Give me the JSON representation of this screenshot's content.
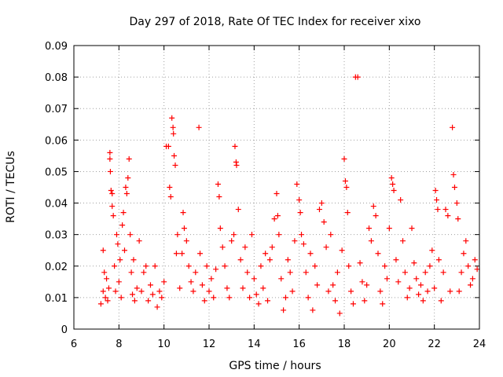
{
  "chart_data": {
    "type": "scatter",
    "title": "Day 297 of 2018, Rate Of TEC Index for receiver xixo",
    "xlabel": "GPS time / hours",
    "ylabel": "ROTI / TECUs",
    "xlim": [
      6,
      24
    ],
    "ylim": [
      0,
      0.09
    ],
    "xticks": [
      6,
      8,
      10,
      12,
      14,
      16,
      18,
      20,
      22,
      24
    ],
    "yticks": [
      0,
      0.01,
      0.02,
      0.03,
      0.04,
      0.05,
      0.06,
      0.07,
      0.08,
      0.09
    ],
    "xtick_labels": [
      "6",
      "8",
      "10",
      "12",
      "14",
      "16",
      "18",
      "20",
      "22",
      "24"
    ],
    "ytick_labels": [
      "0",
      "0.01",
      "0.02",
      "0.03",
      "0.04",
      "0.05",
      "0.06",
      "0.07",
      "0.08",
      "0.09"
    ],
    "grid": true,
    "marker": "+",
    "marker_color": "#ff0000",
    "series": [
      {
        "name": "ROTI",
        "points": [
          [
            7.2,
            0.008
          ],
          [
            7.3,
            0.012
          ],
          [
            7.3,
            0.025
          ],
          [
            7.35,
            0.018
          ],
          [
            7.4,
            0.01
          ],
          [
            7.45,
            0.016
          ],
          [
            7.5,
            0.009
          ],
          [
            7.55,
            0.013
          ],
          [
            7.6,
            0.056
          ],
          [
            7.6,
            0.054
          ],
          [
            7.62,
            0.05
          ],
          [
            7.65,
            0.044
          ],
          [
            7.7,
            0.043
          ],
          [
            7.7,
            0.039
          ],
          [
            7.75,
            0.036
          ],
          [
            7.8,
            0.02
          ],
          [
            7.85,
            0.012
          ],
          [
            7.9,
            0.03
          ],
          [
            7.95,
            0.027
          ],
          [
            8.0,
            0.015
          ],
          [
            8.05,
            0.022
          ],
          [
            8.1,
            0.01
          ],
          [
            8.15,
            0.033
          ],
          [
            8.2,
            0.037
          ],
          [
            8.25,
            0.025
          ],
          [
            8.3,
            0.045
          ],
          [
            8.35,
            0.043
          ],
          [
            8.4,
            0.048
          ],
          [
            8.45,
            0.054
          ],
          [
            8.5,
            0.03
          ],
          [
            8.55,
            0.018
          ],
          [
            8.6,
            0.011
          ],
          [
            8.65,
            0.022
          ],
          [
            8.7,
            0.009
          ],
          [
            8.8,
            0.013
          ],
          [
            8.9,
            0.028
          ],
          [
            9.0,
            0.012
          ],
          [
            9.1,
            0.018
          ],
          [
            9.2,
            0.02
          ],
          [
            9.3,
            0.009
          ],
          [
            9.4,
            0.014
          ],
          [
            9.5,
            0.011
          ],
          [
            9.6,
            0.02
          ],
          [
            9.7,
            0.007
          ],
          [
            9.8,
            0.012
          ],
          [
            9.9,
            0.01
          ],
          [
            10.0,
            0.015
          ],
          [
            10.1,
            0.058
          ],
          [
            10.2,
            0.058
          ],
          [
            10.25,
            0.045
          ],
          [
            10.3,
            0.042
          ],
          [
            10.35,
            0.067
          ],
          [
            10.4,
            0.064
          ],
          [
            10.42,
            0.062
          ],
          [
            10.45,
            0.055
          ],
          [
            10.5,
            0.052
          ],
          [
            10.55,
            0.024
          ],
          [
            10.6,
            0.03
          ],
          [
            10.7,
            0.013
          ],
          [
            10.8,
            0.024
          ],
          [
            10.85,
            0.037
          ],
          [
            10.9,
            0.032
          ],
          [
            11.0,
            0.028
          ],
          [
            11.1,
            0.02
          ],
          [
            11.2,
            0.015
          ],
          [
            11.3,
            0.012
          ],
          [
            11.4,
            0.018
          ],
          [
            11.55,
            0.064
          ],
          [
            11.6,
            0.024
          ],
          [
            11.7,
            0.014
          ],
          [
            11.8,
            0.009
          ],
          [
            11.9,
            0.02
          ],
          [
            12.0,
            0.012
          ],
          [
            12.1,
            0.016
          ],
          [
            12.2,
            0.01
          ],
          [
            12.3,
            0.019
          ],
          [
            12.4,
            0.046
          ],
          [
            12.45,
            0.042
          ],
          [
            12.5,
            0.032
          ],
          [
            12.6,
            0.026
          ],
          [
            12.7,
            0.02
          ],
          [
            12.8,
            0.013
          ],
          [
            12.9,
            0.01
          ],
          [
            13.0,
            0.028
          ],
          [
            13.1,
            0.03
          ],
          [
            13.15,
            0.058
          ],
          [
            13.2,
            0.053
          ],
          [
            13.22,
            0.052
          ],
          [
            13.3,
            0.038
          ],
          [
            13.4,
            0.022
          ],
          [
            13.5,
            0.013
          ],
          [
            13.6,
            0.026
          ],
          [
            13.7,
            0.018
          ],
          [
            13.8,
            0.01
          ],
          [
            13.9,
            0.03
          ],
          [
            14.0,
            0.016
          ],
          [
            14.1,
            0.011
          ],
          [
            14.2,
            0.008
          ],
          [
            14.3,
            0.02
          ],
          [
            14.4,
            0.013
          ],
          [
            14.5,
            0.024
          ],
          [
            14.6,
            0.009
          ],
          [
            14.7,
            0.022
          ],
          [
            14.8,
            0.026
          ],
          [
            14.9,
            0.035
          ],
          [
            15.0,
            0.043
          ],
          [
            15.05,
            0.036
          ],
          [
            15.1,
            0.03
          ],
          [
            15.2,
            0.016
          ],
          [
            15.3,
            0.006
          ],
          [
            15.4,
            0.01
          ],
          [
            15.5,
            0.022
          ],
          [
            15.6,
            0.018
          ],
          [
            15.7,
            0.012
          ],
          [
            15.8,
            0.028
          ],
          [
            15.9,
            0.046
          ],
          [
            16.0,
            0.041
          ],
          [
            16.05,
            0.037
          ],
          [
            16.1,
            0.03
          ],
          [
            16.2,
            0.027
          ],
          [
            16.3,
            0.018
          ],
          [
            16.4,
            0.01
          ],
          [
            16.5,
            0.024
          ],
          [
            16.6,
            0.006
          ],
          [
            16.7,
            0.02
          ],
          [
            16.8,
            0.014
          ],
          [
            16.9,
            0.038
          ],
          [
            17.0,
            0.04
          ],
          [
            17.1,
            0.034
          ],
          [
            17.2,
            0.026
          ],
          [
            17.3,
            0.012
          ],
          [
            17.4,
            0.03
          ],
          [
            17.5,
            0.014
          ],
          [
            17.6,
            0.009
          ],
          [
            17.7,
            0.018
          ],
          [
            17.8,
            0.005
          ],
          [
            17.9,
            0.025
          ],
          [
            18.0,
            0.054
          ],
          [
            18.05,
            0.047
          ],
          [
            18.1,
            0.045
          ],
          [
            18.15,
            0.037
          ],
          [
            18.2,
            0.02
          ],
          [
            18.3,
            0.012
          ],
          [
            18.4,
            0.008
          ],
          [
            18.5,
            0.08
          ],
          [
            18.6,
            0.08
          ],
          [
            18.7,
            0.021
          ],
          [
            18.8,
            0.015
          ],
          [
            18.9,
            0.009
          ],
          [
            19.0,
            0.014
          ],
          [
            19.1,
            0.032
          ],
          [
            19.2,
            0.028
          ],
          [
            19.3,
            0.039
          ],
          [
            19.4,
            0.036
          ],
          [
            19.5,
            0.024
          ],
          [
            19.6,
            0.012
          ],
          [
            19.7,
            0.008
          ],
          [
            19.8,
            0.02
          ],
          [
            19.9,
            0.016
          ],
          [
            20.0,
            0.032
          ],
          [
            20.1,
            0.048
          ],
          [
            20.15,
            0.046
          ],
          [
            20.2,
            0.044
          ],
          [
            20.3,
            0.022
          ],
          [
            20.4,
            0.015
          ],
          [
            20.5,
            0.041
          ],
          [
            20.6,
            0.028
          ],
          [
            20.7,
            0.018
          ],
          [
            20.8,
            0.01
          ],
          [
            20.9,
            0.013
          ],
          [
            21.0,
            0.032
          ],
          [
            21.1,
            0.021
          ],
          [
            21.2,
            0.016
          ],
          [
            21.3,
            0.011
          ],
          [
            21.4,
            0.014
          ],
          [
            21.5,
            0.009
          ],
          [
            21.6,
            0.018
          ],
          [
            21.7,
            0.012
          ],
          [
            21.8,
            0.02
          ],
          [
            21.9,
            0.025
          ],
          [
            22.0,
            0.013
          ],
          [
            22.05,
            0.044
          ],
          [
            22.1,
            0.041
          ],
          [
            22.15,
            0.038
          ],
          [
            22.2,
            0.022
          ],
          [
            22.3,
            0.009
          ],
          [
            22.4,
            0.018
          ],
          [
            22.5,
            0.038
          ],
          [
            22.6,
            0.036
          ],
          [
            22.7,
            0.012
          ],
          [
            22.8,
            0.064
          ],
          [
            22.85,
            0.049
          ],
          [
            22.9,
            0.045
          ],
          [
            23.0,
            0.04
          ],
          [
            23.05,
            0.035
          ],
          [
            23.1,
            0.012
          ],
          [
            23.2,
            0.018
          ],
          [
            23.3,
            0.024
          ],
          [
            23.4,
            0.028
          ],
          [
            23.5,
            0.02
          ],
          [
            23.6,
            0.014
          ],
          [
            23.7,
            0.016
          ],
          [
            23.8,
            0.022
          ],
          [
            23.9,
            0.019
          ]
        ]
      }
    ]
  }
}
